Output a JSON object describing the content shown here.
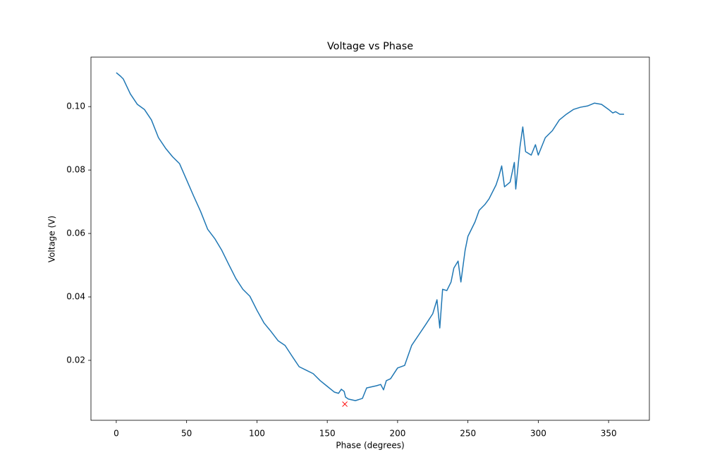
{
  "chart_data": {
    "type": "line",
    "title": "Voltage vs Phase",
    "xlabel": "Phase (degrees)",
    "ylabel": "Voltage (V)",
    "color": "#1f77b4",
    "x": [
      0,
      3,
      5,
      10,
      15,
      20,
      25,
      30,
      35,
      40,
      45,
      50,
      55,
      60,
      65,
      70,
      75,
      80,
      85,
      90,
      95,
      100,
      105,
      110,
      115,
      120,
      125,
      130,
      135,
      140,
      145,
      150,
      155,
      158,
      160,
      162,
      163,
      165,
      170,
      175,
      178,
      185,
      188,
      190,
      192,
      195,
      200,
      205,
      210,
      215,
      220,
      225,
      228,
      230,
      232,
      235,
      238,
      240,
      243,
      245,
      248,
      250,
      255,
      258,
      262,
      265,
      270,
      272,
      274,
      276,
      280,
      283,
      284,
      287,
      289,
      291,
      295,
      298,
      300,
      305,
      310,
      315,
      320,
      325,
      330,
      335,
      340,
      345,
      350,
      353,
      355,
      358,
      361
    ],
    "values": [
      0.1107,
      0.1096,
      0.1087,
      0.104,
      0.1007,
      0.0991,
      0.0958,
      0.0902,
      0.0869,
      0.0842,
      0.082,
      0.0769,
      0.0718,
      0.0669,
      0.0613,
      0.0584,
      0.0547,
      0.0502,
      0.0458,
      0.0424,
      0.0402,
      0.0358,
      0.0318,
      0.0291,
      0.0262,
      0.0247,
      0.0213,
      0.018,
      0.0169,
      0.0158,
      0.0136,
      0.0118,
      0.01,
      0.0096,
      0.0109,
      0.0102,
      0.0084,
      0.0078,
      0.0073,
      0.008,
      0.0113,
      0.012,
      0.0124,
      0.0107,
      0.0136,
      0.0142,
      0.0176,
      0.0184,
      0.0247,
      0.028,
      0.0313,
      0.0347,
      0.0391,
      0.0302,
      0.0424,
      0.042,
      0.0447,
      0.0491,
      0.0513,
      0.0447,
      0.0547,
      0.0591,
      0.0636,
      0.0673,
      0.0691,
      0.0709,
      0.0753,
      0.078,
      0.0813,
      0.0747,
      0.0762,
      0.0824,
      0.074,
      0.0873,
      0.0936,
      0.0858,
      0.0847,
      0.088,
      0.0847,
      0.0902,
      0.0924,
      0.0958,
      0.0976,
      0.0991,
      0.0998,
      0.1002,
      0.1011,
      0.1007,
      0.0991,
      0.098,
      0.0984,
      0.0976,
      0.0976
    ],
    "marker": {
      "x": 162.5,
      "y": 0.0062,
      "color": "#ff0000"
    },
    "xlim": [
      -18,
      379
    ],
    "xticks": [
      0,
      50,
      100,
      150,
      200,
      250,
      300,
      350
    ],
    "ylim": [
      0.0011,
      0.1156
    ],
    "yticks": [
      0.02,
      0.04,
      0.06,
      0.08,
      {
        "value": 0.1,
        "label": "0.10"
      }
    ]
  }
}
